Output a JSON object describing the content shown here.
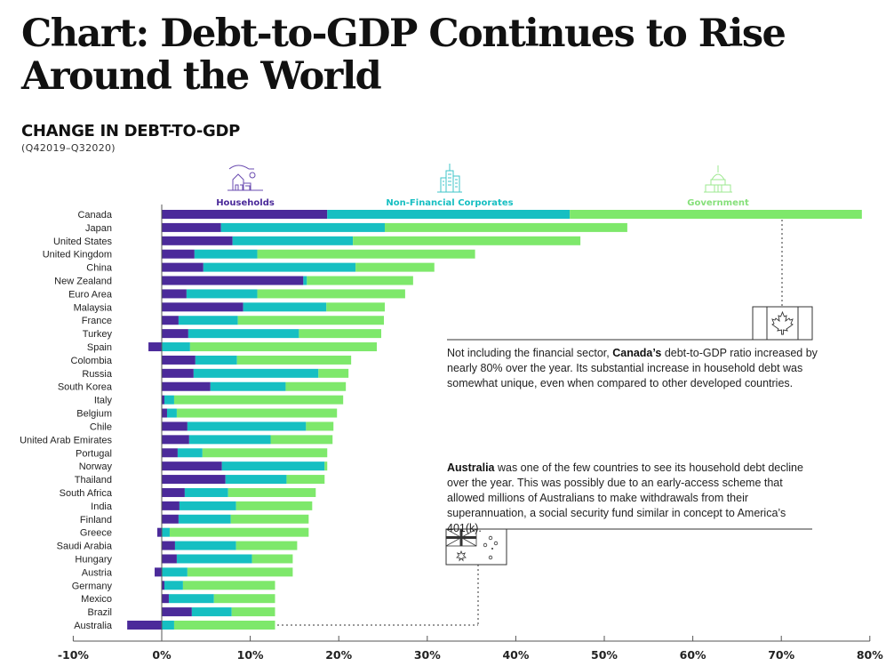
{
  "header": {
    "title": "Chart: Debt-to-GDP Continues to Rise Around the World",
    "subtitle": "CHANGE IN DEBT-TO-GDP",
    "period": "(Q42019–Q32020)"
  },
  "colors": {
    "households": "#4b2a9a",
    "corporates": "#16bfc2",
    "government": "#7ee86b",
    "axis": "#555555"
  },
  "annotations": {
    "canada": {
      "bold": "Canada’s",
      "before": "Not including the financial sector, ",
      "after": " debt-to-GDP ratio increased by nearly 80% over the year. Its substantial increase in household debt was somewhat unique, even when compared to other developed countries.",
      "flag_icon": "canada-flag-icon"
    },
    "australia": {
      "bold": "Australia",
      "after": " was one of the few countries to see its household debt decline over the year. This was possibly due to an early-access scheme that allowed millions of Australians to make withdrawals from their superannuation, a social security fund similar in concept to America’s 401(k).",
      "flag_icon": "australia-flag-icon"
    }
  },
  "chart_data": {
    "type": "bar",
    "orientation": "horizontal",
    "stacked": true,
    "title": "CHANGE IN DEBT-TO-GDP",
    "subtitle": "(Q42019–Q32020)",
    "xlabel": "",
    "ylabel": "",
    "xlim": [
      -10,
      80
    ],
    "x_ticks": [
      "-10%",
      "0%",
      "10%",
      "20%",
      "30%",
      "40%",
      "50%",
      "60%",
      "70%",
      "80%"
    ],
    "x_tick_values": [
      -10,
      0,
      10,
      20,
      30,
      40,
      50,
      60,
      70,
      80
    ],
    "legend_position": "top",
    "grid": false,
    "categories": [
      "Canada",
      "Japan",
      "United States",
      "United Kingdom",
      "China",
      "New Zealand",
      "Euro Area",
      "Malaysia",
      "France",
      "Turkey",
      "Spain",
      "Colombia",
      "Russia",
      "South Korea",
      "Italy",
      "Belgium",
      "Chile",
      "United Arab Emirates",
      "Portugal",
      "Norway",
      "Thailand",
      "South Africa",
      "India",
      "Finland",
      "Greece",
      "Saudi Arabia",
      "Hungary",
      "Austria",
      "Germany",
      "Mexico",
      "Brazil",
      "Australia"
    ],
    "series": [
      {
        "name": "Households",
        "icon": "house-icon",
        "values": [
          18.7,
          6.7,
          8.0,
          3.7,
          4.7,
          16.0,
          2.8,
          9.2,
          1.9,
          3.0,
          -1.5,
          3.8,
          3.6,
          5.5,
          0.3,
          0.6,
          2.9,
          3.1,
          1.8,
          6.8,
          7.2,
          2.6,
          2.0,
          1.9,
          -0.5,
          1.5,
          1.7,
          -0.8,
          0.3,
          0.8,
          3.4,
          -3.9
        ]
      },
      {
        "name": "Non-Financial Corporates",
        "icon": "office-building-icon",
        "values": [
          27.4,
          18.5,
          13.6,
          7.1,
          17.2,
          0.4,
          8.0,
          9.4,
          6.7,
          12.5,
          3.2,
          4.7,
          14.1,
          8.5,
          1.1,
          1.1,
          13.4,
          9.2,
          2.8,
          11.6,
          6.9,
          4.9,
          6.4,
          5.9,
          0.9,
          6.9,
          8.5,
          2.9,
          2.1,
          5.1,
          4.5,
          1.4
        ]
      },
      {
        "name": "Government",
        "icon": "capitol-building-icon",
        "values": [
          33.0,
          27.4,
          25.7,
          24.6,
          8.9,
          12.0,
          16.7,
          6.6,
          16.5,
          9.3,
          21.1,
          12.9,
          3.4,
          6.8,
          19.1,
          18.1,
          3.1,
          7.0,
          14.1,
          0.3,
          4.3,
          9.9,
          8.6,
          8.8,
          15.7,
          6.9,
          4.6,
          11.9,
          10.4,
          6.9,
          4.9,
          11.4
        ]
      }
    ]
  }
}
